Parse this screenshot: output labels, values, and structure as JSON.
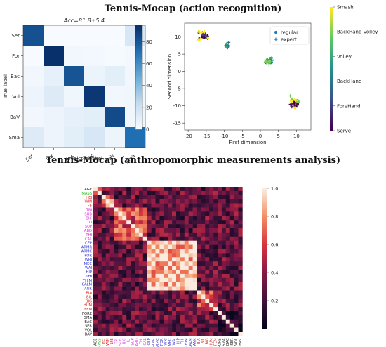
{
  "titles": {
    "top": "Tennis-Mocap (action recognition)",
    "bottom": "Tennis-Mocap (anthropomorphic measurements analysis)"
  },
  "chart_data": [
    {
      "type": "heatmap",
      "subtitle": "Acc=81.8±5.4",
      "xlabel": "Predicted label",
      "ylabel": "True label",
      "rows": [
        "Ser",
        "For",
        "Bac",
        "Vol",
        "BaV",
        "Sma"
      ],
      "cols": [
        "Ser",
        "For",
        "Bac",
        "Vol",
        "BaV",
        "Sma"
      ],
      "values": [
        [
          83,
          0,
          0,
          0,
          0,
          15
        ],
        [
          0,
          97,
          3,
          2,
          1,
          2
        ],
        [
          3,
          8,
          82,
          6,
          10,
          3
        ],
        [
          5,
          12,
          4,
          92,
          3,
          4
        ],
        [
          3,
          5,
          8,
          10,
          85,
          4
        ],
        [
          12,
          5,
          10,
          15,
          5,
          72
        ]
      ],
      "colorbar": {
        "min": 0,
        "max": 95,
        "ticks": [
          0,
          20,
          40,
          60,
          80
        ],
        "colormap": "Blues"
      }
    },
    {
      "type": "scatter",
      "xlabel": "First dimension",
      "ylabel": "Second dimension",
      "xticks": [
        -20,
        -15,
        -10,
        -5,
        0,
        5,
        10
      ],
      "yticks": [
        -15,
        -10,
        -5,
        0,
        5,
        10
      ],
      "xlim": [
        -21,
        14
      ],
      "ylim": [
        -17,
        14
      ],
      "legend": [
        "regular",
        "expert"
      ],
      "legend_position": "top-right",
      "colorbar": {
        "labels": [
          "Smash",
          "BackHand Volley",
          "Volley",
          "BackHand",
          "ForeHand",
          "Serve"
        ],
        "colormap": "viridis"
      },
      "clusters": [
        {
          "cx": -16,
          "cy": 10.5,
          "sx": 2.0,
          "sy": 1.6,
          "n": 26,
          "seed": 3,
          "classes": [
            0,
            4,
            5
          ]
        },
        {
          "cx": -9,
          "cy": 7.5,
          "sx": 0.8,
          "sy": 1.1,
          "n": 16,
          "seed": 7,
          "classes": [
            2,
            3
          ]
        },
        {
          "cx": 2.5,
          "cy": 3,
          "sx": 1.6,
          "sy": 1.5,
          "n": 24,
          "seed": 11,
          "classes": [
            2,
            3,
            1
          ]
        },
        {
          "cx": 9.5,
          "cy": -9,
          "sx": 1.6,
          "sy": 2.4,
          "n": 42,
          "seed": 19,
          "classes": [
            0,
            1,
            4,
            5
          ]
        }
      ]
    },
    {
      "type": "heatmap",
      "labels": [
        "AGE",
        "MASS",
        "HEI",
        "WIN",
        "LFE",
        "TRI",
        "SUB",
        "BIC",
        "ILI",
        "SUP",
        "ABD",
        "THI",
        "CAL",
        "CEP",
        "ARMR",
        "ARMC",
        "FOR",
        "WRI",
        "MEC",
        "WAI",
        "HIP",
        "THI",
        "THIM",
        "CALM",
        "ANK",
        "BIA",
        "BIL",
        "BIG",
        "HUM",
        "FEM",
        "FORE",
        "SMA",
        "BAC",
        "SER",
        "VOL",
        "BAV"
      ],
      "label_colors": [
        "#222222",
        "#2bb82b",
        "#dd2222",
        "#dd2222",
        "#dd2222",
        "#dd33dd",
        "#dd33dd",
        "#dd33dd",
        "#dd33dd",
        "#dd33dd",
        "#dd33dd",
        "#dd33dd",
        "#dd33dd",
        "#3333cc",
        "#3333cc",
        "#3333cc",
        "#3333cc",
        "#3333cc",
        "#3333cc",
        "#3333cc",
        "#3333cc",
        "#3333cc",
        "#3333cc",
        "#3333cc",
        "#3333cc",
        "#dd2222",
        "#dd2222",
        "#dd2222",
        "#dd2222",
        "#dd2222",
        "#222222",
        "#222222",
        "#222222",
        "#222222",
        "#222222",
        "#222222"
      ],
      "blocks": [
        [
          0,
          1,
          0.5
        ],
        [
          2,
          4,
          0.75
        ],
        [
          5,
          12,
          0.65
        ],
        [
          13,
          24,
          0.88
        ],
        [
          25,
          29,
          0.6
        ],
        [
          30,
          35,
          0.1
        ]
      ],
      "colorbar": {
        "min": 0,
        "max": 1.0,
        "ticks": [
          0.2,
          0.4,
          0.6,
          0.8,
          1.0
        ],
        "colormap": "rocket"
      }
    }
  ]
}
